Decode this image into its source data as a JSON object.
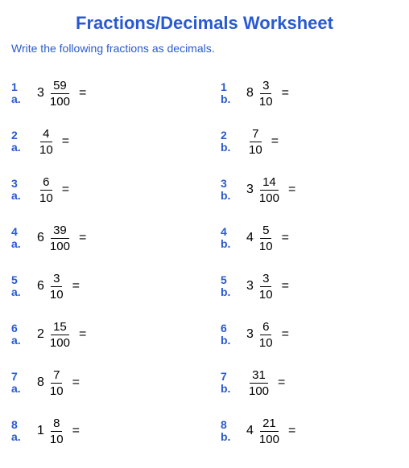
{
  "title": "Fractions/Decimals Worksheet",
  "instructions": "Write the following fractions as decimals.",
  "colors": {
    "accent": "#2a5ad0",
    "text": "#000000",
    "background": "#ffffff"
  },
  "problems": [
    {
      "row": "1",
      "col": "a.",
      "whole": "3",
      "numerator": "59",
      "denominator": "100"
    },
    {
      "row": "1",
      "col": "b.",
      "whole": "8",
      "numerator": "3",
      "denominator": "10"
    },
    {
      "row": "2",
      "col": "a.",
      "whole": "",
      "numerator": "4",
      "denominator": "10"
    },
    {
      "row": "2",
      "col": "b.",
      "whole": "",
      "numerator": "7",
      "denominator": "10"
    },
    {
      "row": "3",
      "col": "a.",
      "whole": "",
      "numerator": "6",
      "denominator": "10"
    },
    {
      "row": "3",
      "col": "b.",
      "whole": "3",
      "numerator": "14",
      "denominator": "100"
    },
    {
      "row": "4",
      "col": "a.",
      "whole": "6",
      "numerator": "39",
      "denominator": "100"
    },
    {
      "row": "4",
      "col": "b.",
      "whole": "4",
      "numerator": "5",
      "denominator": "10"
    },
    {
      "row": "5",
      "col": "a.",
      "whole": "6",
      "numerator": "3",
      "denominator": "10"
    },
    {
      "row": "5",
      "col": "b.",
      "whole": "3",
      "numerator": "3",
      "denominator": "10"
    },
    {
      "row": "6",
      "col": "a.",
      "whole": "2",
      "numerator": "15",
      "denominator": "100"
    },
    {
      "row": "6",
      "col": "b.",
      "whole": "3",
      "numerator": "6",
      "denominator": "10"
    },
    {
      "row": "7",
      "col": "a.",
      "whole": "8",
      "numerator": "7",
      "denominator": "10"
    },
    {
      "row": "7",
      "col": "b.",
      "whole": "",
      "numerator": "31",
      "denominator": "100"
    },
    {
      "row": "8",
      "col": "a.",
      "whole": "1",
      "numerator": "8",
      "denominator": "10"
    },
    {
      "row": "8",
      "col": "b.",
      "whole": "4",
      "numerator": "21",
      "denominator": "100"
    }
  ],
  "equals": "="
}
